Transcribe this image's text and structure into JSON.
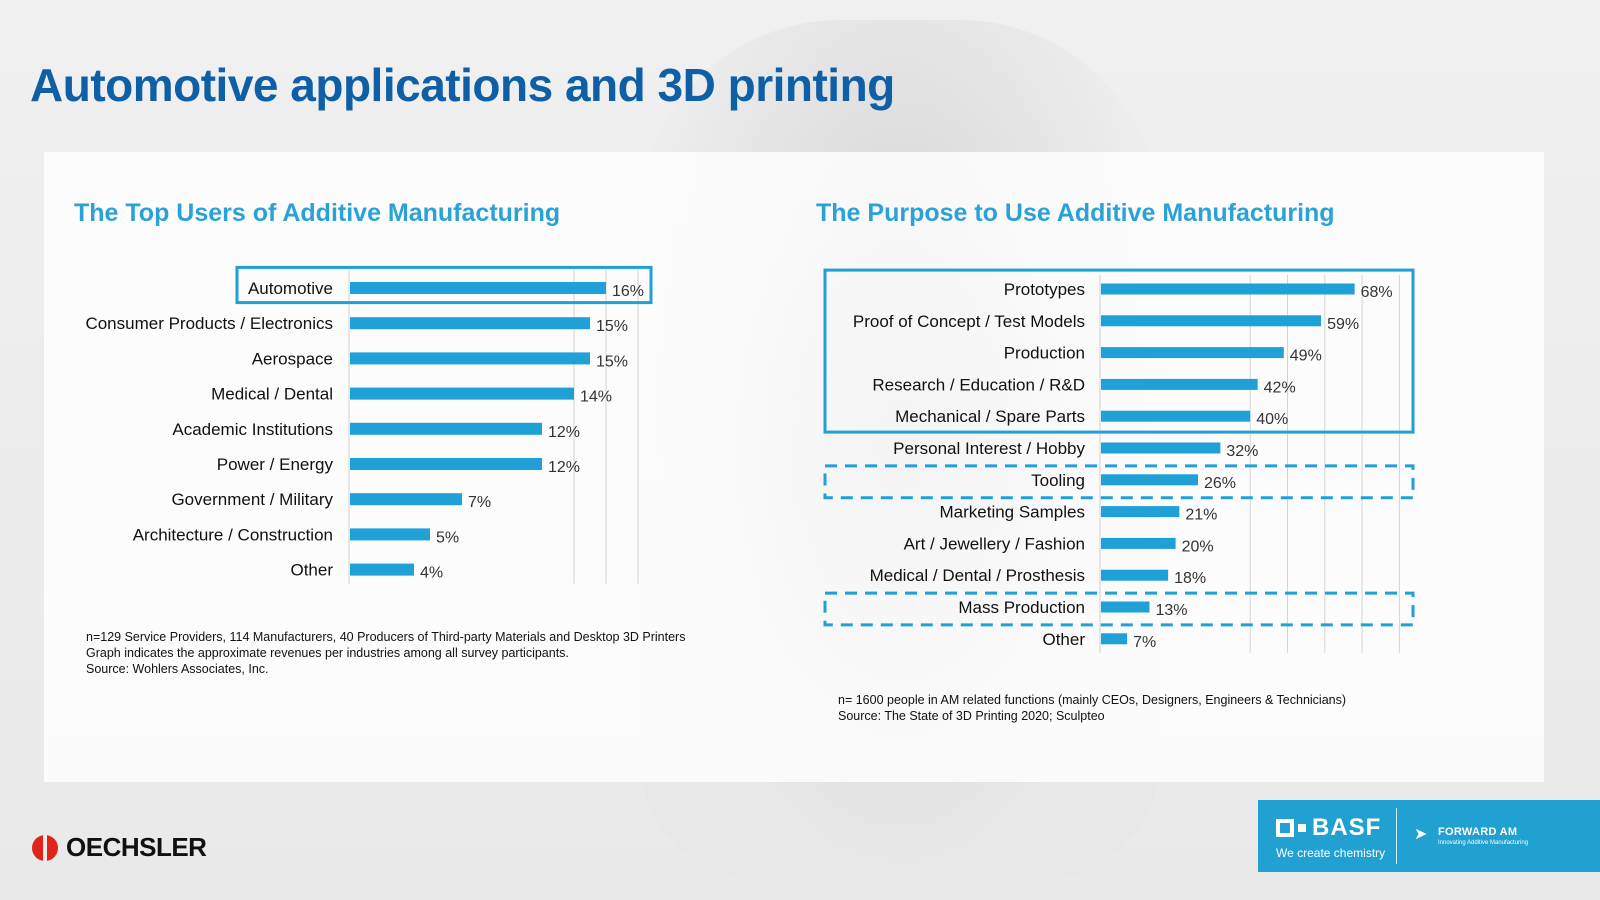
{
  "page": {
    "title": "Automotive applications and 3D printing"
  },
  "chart_data": [
    {
      "type": "bar",
      "orientation": "horizontal",
      "title": "The Top Users of Additive Manufacturing",
      "categories": [
        "Automotive",
        "Consumer Products / Electronics",
        "Aerospace",
        "Medical / Dental",
        "Academic Institutions",
        "Power / Energy",
        "Government / Military",
        "Architecture / Construction",
        "Other"
      ],
      "values": [
        16,
        15,
        15,
        14,
        12,
        12,
        7,
        5,
        4
      ],
      "data_labels": [
        "16%",
        "15%",
        "15%",
        "14%",
        "12%",
        "12%",
        "7%",
        "5%",
        "4%"
      ],
      "unit": "%",
      "xlim": [
        0,
        18
      ],
      "grid": true,
      "highlight": {
        "solid": [
          "Automotive"
        ]
      },
      "bar_color": "#1fa0d6",
      "note_lines": [
        "n=129 Service Providers, 114 Manufacturers, 40 Producers of Third-party Materials and Desktop 3D Printers",
        "Graph indicates the approximate revenues per industries among all survey participants.",
        "Source: Wohlers Associates, Inc."
      ]
    },
    {
      "type": "bar",
      "orientation": "horizontal",
      "title": "The Purpose to Use Additive Manufacturing",
      "categories": [
        "Prototypes",
        "Proof of Concept / Test Models",
        "Production",
        "Research / Education / R&D",
        "Mechanical / Spare Parts",
        "Personal Interest / Hobby",
        "Tooling",
        "Marketing Samples",
        "Art / Jewellery / Fashion",
        "Medical / Dental / Prosthesis",
        "Mass Production",
        "Other"
      ],
      "values": [
        68,
        59,
        49,
        42,
        40,
        32,
        26,
        21,
        20,
        18,
        13,
        7
      ],
      "data_labels": [
        "68%",
        "59%",
        "49%",
        "42%",
        "40%",
        "32%",
        "26%",
        "21%",
        "20%",
        "18%",
        "13%",
        "7%"
      ],
      "unit": "%",
      "xlim": [
        0,
        80
      ],
      "grid": true,
      "highlight": {
        "solid": [
          "Prototypes",
          "Proof of Concept / Test Models",
          "Production",
          "Research / Education / R&D",
          "Mechanical / Spare Parts"
        ],
        "dashed": [
          [
            "Tooling"
          ],
          [
            "Mass Production"
          ]
        ]
      },
      "bar_color": "#1fa0d6",
      "note_lines": [
        "n= 1600 people in AM related functions (mainly CEOs, Designers, Engineers & Technicians)",
        "Source: The State of 3D Printing 2020; Sculpteo"
      ]
    }
  ],
  "footer": {
    "oechsler": "OECHSLER",
    "basf": "BASF",
    "basf_slogan": "We create chemistry",
    "forward": "FORWARD AM",
    "forward_sub": "Innovating Additive Manufacturing"
  },
  "colors": {
    "title": "#0e5fa6",
    "chart_title": "#2aa2d8",
    "bar": "#1fa0d6",
    "highlight_box": "#1fa0d6",
    "basf": "#21a0d2",
    "oechsler_red": "#e2231a"
  }
}
